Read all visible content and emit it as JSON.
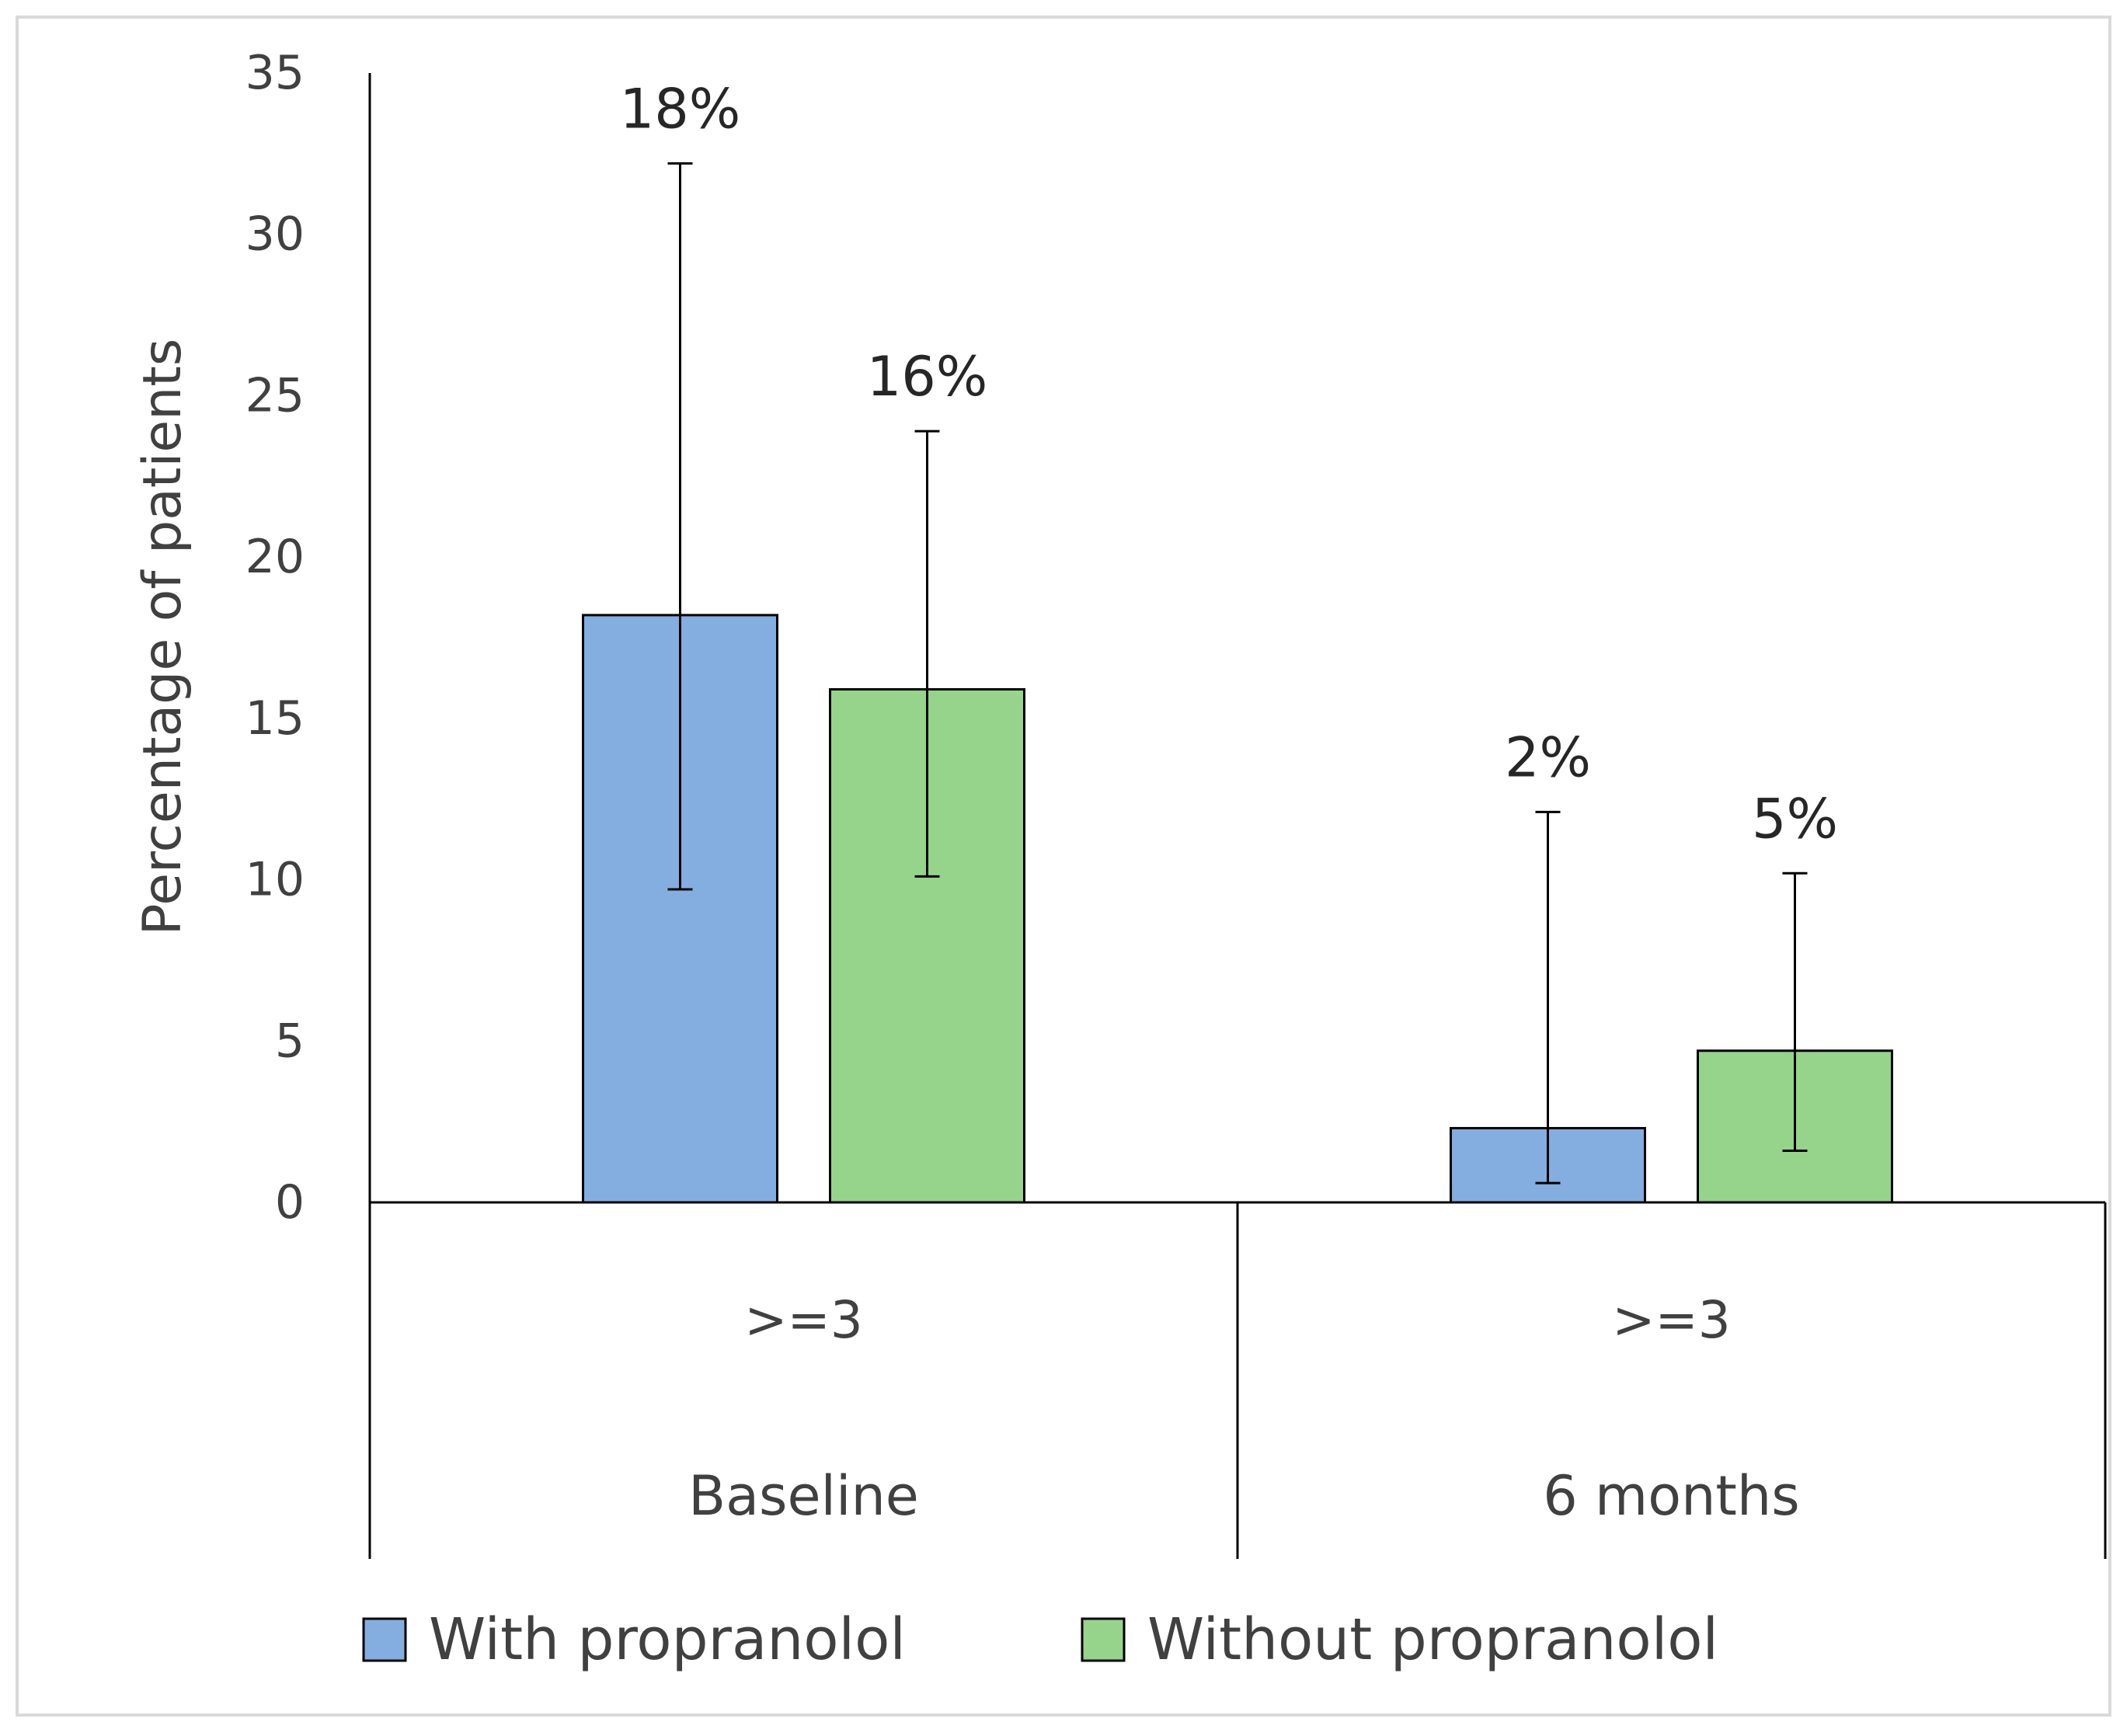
{
  "chart_data": {
    "type": "bar",
    "title": "",
    "xlabel": "",
    "ylabel": "Percentage of patients",
    "ylim": [
      0,
      35
    ],
    "yticks": [
      0,
      5,
      10,
      15,
      20,
      25,
      30,
      35
    ],
    "grid": false,
    "legend_position": "bottom",
    "groups": [
      {
        "label": "Baseline",
        "sublabel": ">=3"
      },
      {
        "label": "6 months",
        "sublabel": ">=3"
      }
    ],
    "series": [
      {
        "name": "With propranolol",
        "color": "#84AEE0",
        "values": [
          18.2,
          2.3
        ],
        "data_labels": [
          "18%",
          "2%"
        ],
        "error_low": [
          9.7,
          0.6
        ],
        "error_high": [
          32.2,
          12.1
        ]
      },
      {
        "name": "Without propranolol",
        "color": "#95D48A",
        "values": [
          15.9,
          4.7
        ],
        "data_labels": [
          "16%",
          "5%"
        ],
        "error_low": [
          10.1,
          1.6
        ],
        "error_high": [
          23.9,
          10.2
        ]
      }
    ]
  }
}
